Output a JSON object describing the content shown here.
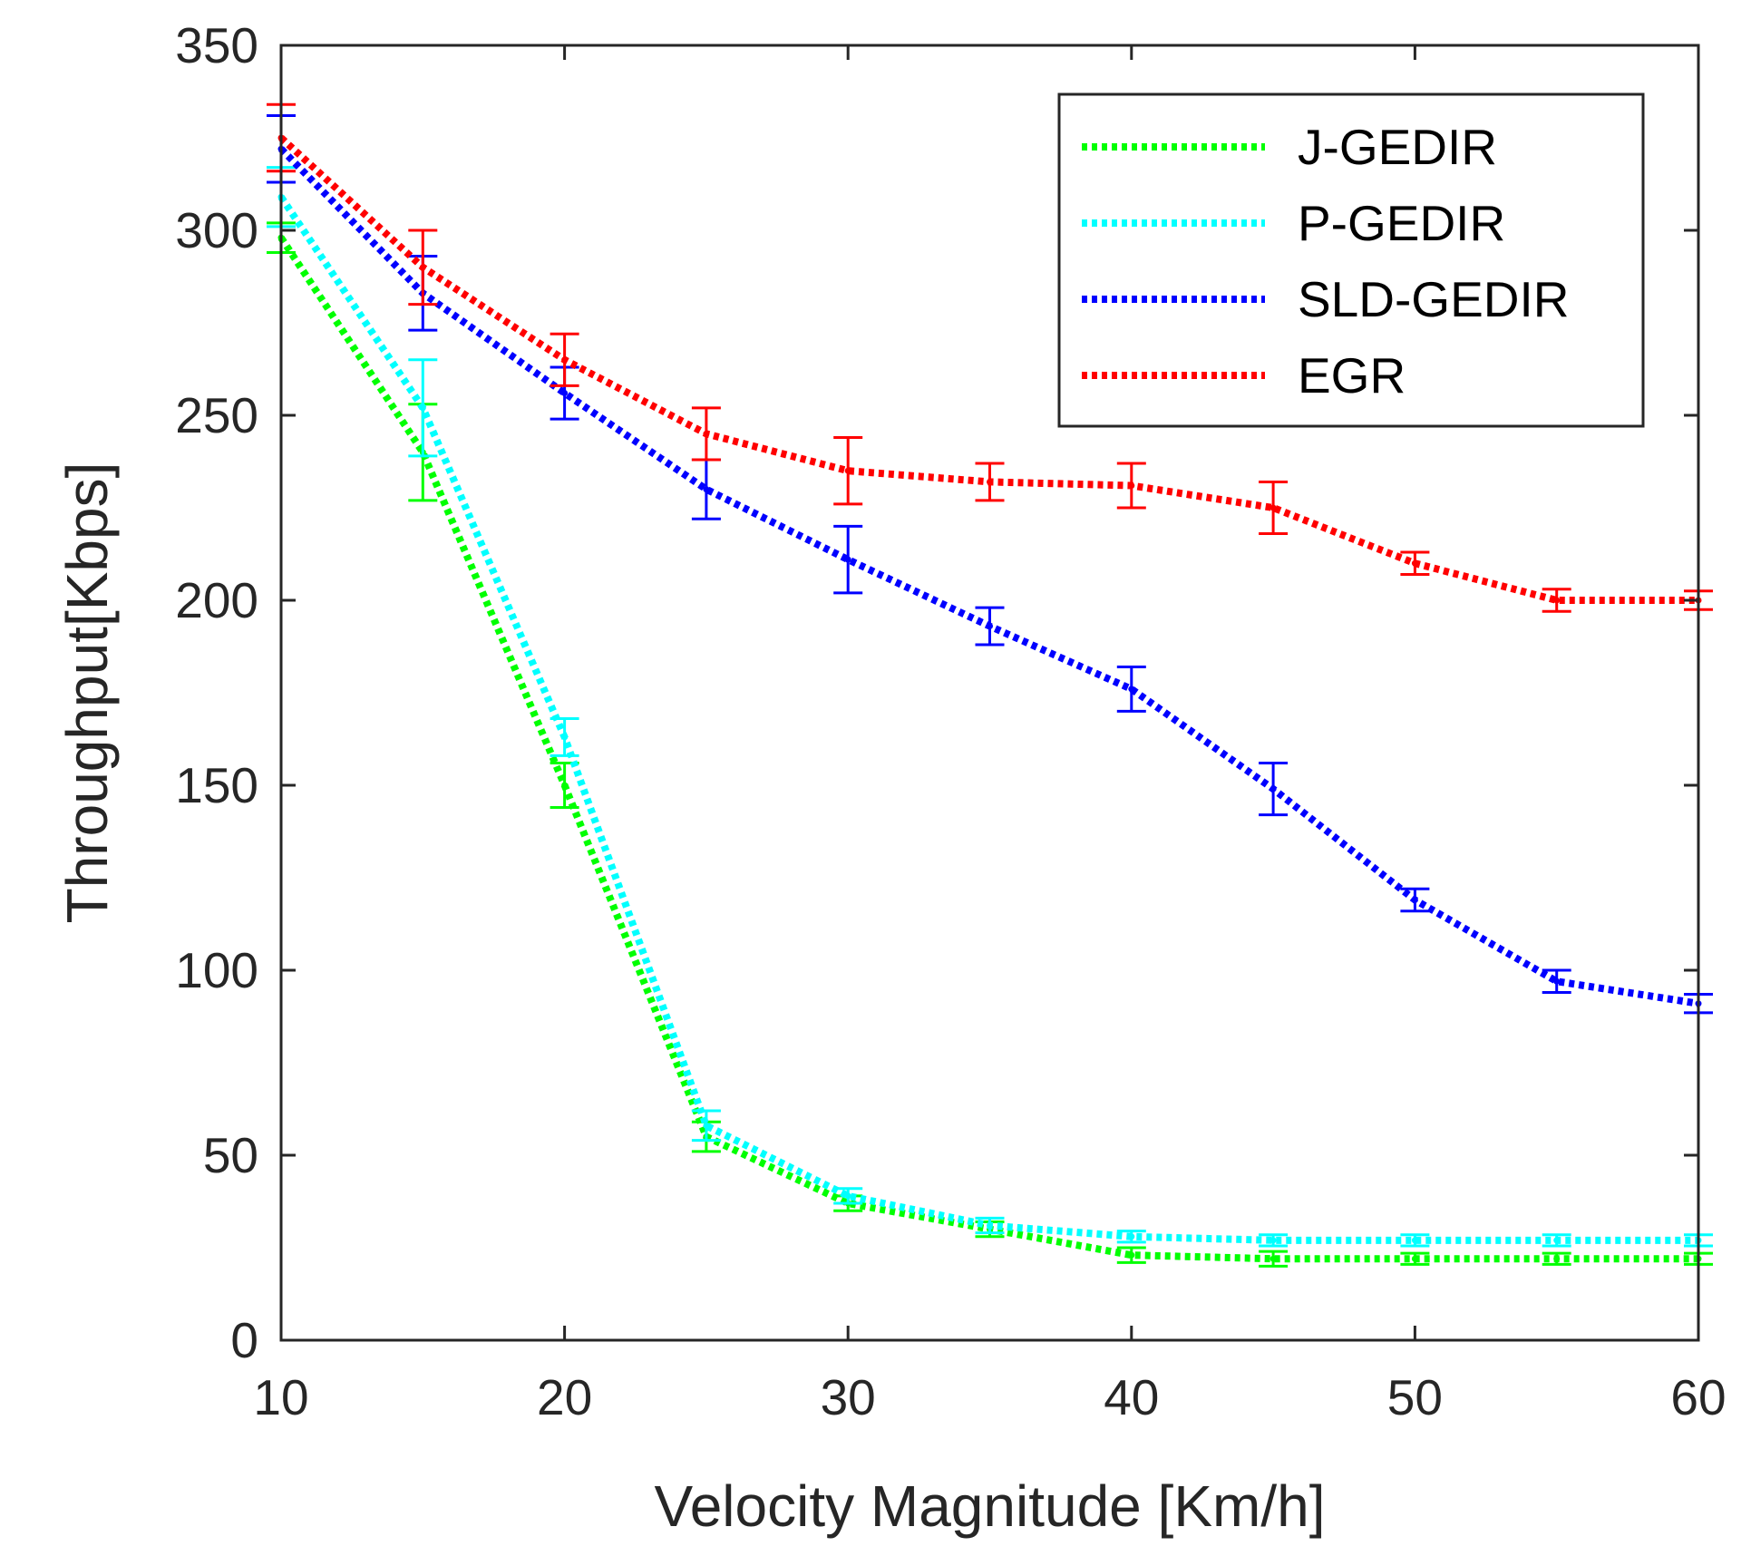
{
  "chart_data": {
    "type": "line",
    "xlabel": "Velocity Magnitude [Km/h]",
    "ylabel": "Throughput[Kbps]",
    "xlim": [
      10,
      60
    ],
    "ylim": [
      0,
      350
    ],
    "xticks": [
      10,
      20,
      30,
      40,
      50,
      60
    ],
    "yticks": [
      0,
      50,
      100,
      150,
      200,
      250,
      300,
      350
    ],
    "xtick_labels": [
      "10",
      "20",
      "30",
      "40",
      "50",
      "60"
    ],
    "ytick_labels": [
      "0",
      "50",
      "100",
      "150",
      "200",
      "250",
      "300",
      "350"
    ],
    "grid": false,
    "legend_position": "top-right",
    "line_style": "dotted",
    "error_bars": true,
    "x": [
      10,
      15,
      20,
      25,
      30,
      35,
      40,
      45,
      50,
      55,
      60
    ],
    "series": [
      {
        "name": "J-GEDIR",
        "color": "#00ff00",
        "values": [
          298,
          240,
          150,
          55,
          37,
          30,
          23,
          22,
          22,
          22,
          22
        ],
        "errors": [
          4,
          13,
          6,
          4,
          2,
          2,
          2,
          2,
          1.5,
          1.5,
          1.5
        ]
      },
      {
        "name": "P-GEDIR",
        "color": "#00ffff",
        "values": [
          309,
          252,
          163,
          58,
          39,
          31,
          28,
          27,
          27,
          27,
          27
        ],
        "errors": [
          8,
          13,
          5,
          4,
          2,
          2,
          1.5,
          1.5,
          1.5,
          1.5,
          1.5
        ]
      },
      {
        "name": "SLD-GEDIR",
        "color": "#0000ff",
        "values": [
          322,
          283,
          256,
          230,
          211,
          193,
          176,
          149,
          119,
          97,
          91
        ],
        "errors": [
          9,
          10,
          7,
          8,
          9,
          5,
          6,
          7,
          3,
          3,
          2.5
        ]
      },
      {
        "name": "EGR",
        "color": "#ff0000",
        "values": [
          325,
          290,
          265,
          245,
          235,
          232,
          231,
          225,
          210,
          200,
          200
        ],
        "errors": [
          9,
          10,
          7,
          7,
          9,
          5,
          6,
          7,
          3,
          3,
          2.5
        ]
      }
    ]
  }
}
